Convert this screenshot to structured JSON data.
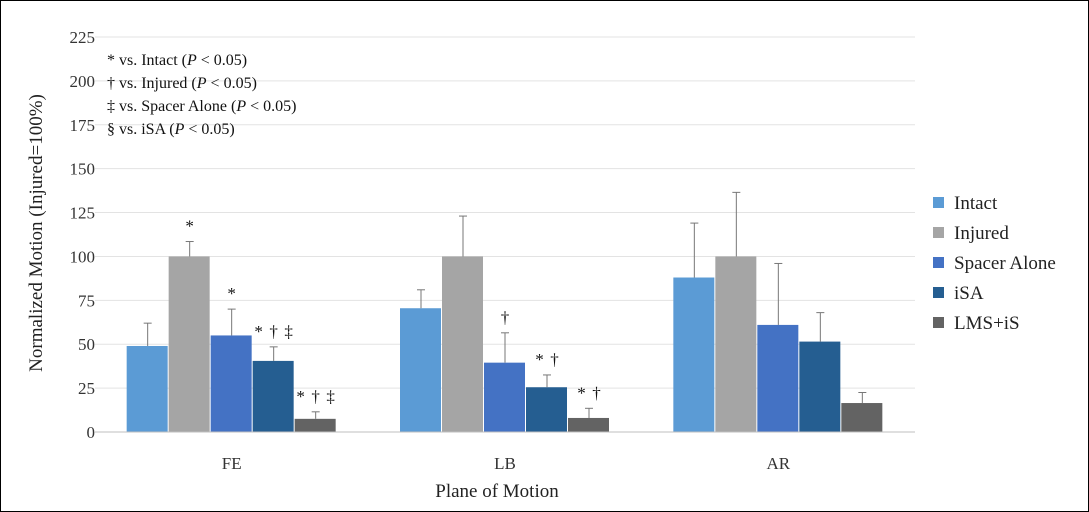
{
  "chart_data": {
    "type": "bar",
    "xlabel": "Plane of Motion",
    "ylabel": "Normalized Motion (Injured=100%)",
    "ylim": [
      0,
      225
    ],
    "yticks": [
      0,
      25,
      50,
      75,
      100,
      125,
      150,
      175,
      200,
      225
    ],
    "categories": [
      "FE",
      "LB",
      "AR"
    ],
    "grid": true,
    "legend_position": "right",
    "series": [
      {
        "name": "Intact",
        "color": "#5b9bd5",
        "values": [
          49,
          70.5,
          88
        ],
        "errors": [
          13,
          10.5,
          31
        ],
        "labels": [
          "",
          "",
          ""
        ]
      },
      {
        "name": "Injured",
        "color": "#a5a5a5",
        "values": [
          100,
          100,
          100
        ],
        "errors": [
          8.5,
          23,
          36.5
        ],
        "labels": [
          "*",
          "",
          ""
        ]
      },
      {
        "name": "Spacer Alone",
        "color": "#4472c4",
        "values": [
          55,
          39.5,
          61
        ],
        "errors": [
          15,
          17,
          35
        ],
        "labels": [
          "*",
          "†",
          ""
        ]
      },
      {
        "name": "iSA",
        "color": "#255e91",
        "values": [
          40.5,
          25.5,
          51.5
        ],
        "errors": [
          8,
          7,
          16.5
        ],
        "labels": [
          "* † ‡",
          "* †",
          ""
        ]
      },
      {
        "name": "LMS+iS",
        "color": "#636363",
        "values": [
          7.5,
          8,
          16.5
        ],
        "errors": [
          4,
          5.5,
          6
        ],
        "labels": [
          "* † ‡",
          "* †",
          ""
        ]
      }
    ],
    "annotations": [
      {
        "symbol": "*",
        "text": " vs. Intact (",
        "p": "P",
        "tail": " < 0.05)"
      },
      {
        "symbol": "†",
        "text": " vs. Injured (",
        "p": "P",
        "tail": " < 0.05)"
      },
      {
        "symbol": "‡",
        "text": " vs. Spacer Alone (",
        "p": "P",
        "tail": " < 0.05)"
      },
      {
        "symbol": "§",
        "text": " vs. iSA (",
        "p": "P",
        "tail": " < 0.05)"
      }
    ]
  }
}
